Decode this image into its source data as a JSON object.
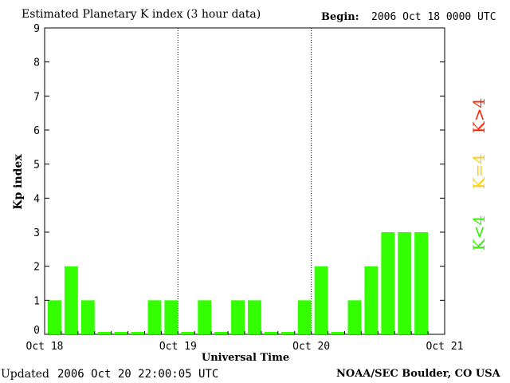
{
  "header": {
    "title": "Estimated Planetary K index (3 hour data)",
    "begin_label": "Begin:",
    "begin_value": "2006 Oct 18 0000 UTC"
  },
  "footer": {
    "updated_label": "Updated",
    "updated_value": "2006 Oct 20 22:00:05 UTC",
    "credit": "NOAA/SEC Boulder, CO USA"
  },
  "legend": [
    {
      "label": "K>4",
      "color": "#ff2200"
    },
    {
      "label": "K=4",
      "color": "#ffcc00"
    },
    {
      "label": "K<4",
      "color": "#33ee00"
    }
  ],
  "chart_data": {
    "type": "bar",
    "title": "Estimated Planetary K index (3 hour data)",
    "xlabel": "Universal Time",
    "ylabel": "Kp index",
    "ylim": [
      0,
      9
    ],
    "yticks": [
      "0",
      "1",
      "2",
      "3",
      "4",
      "5",
      "6",
      "7",
      "8",
      "9"
    ],
    "xticks": [
      "Oct 18",
      "Oct 19",
      "Oct 20",
      "Oct 21"
    ],
    "bar_color": "#33ff00",
    "grid": "dotted vertical lines at day boundaries",
    "values": [
      1,
      2,
      1,
      0,
      0,
      0,
      1,
      1,
      0,
      1,
      0,
      1,
      1,
      0,
      0,
      1,
      2,
      0,
      1,
      2,
      3,
      3,
      3
    ]
  }
}
